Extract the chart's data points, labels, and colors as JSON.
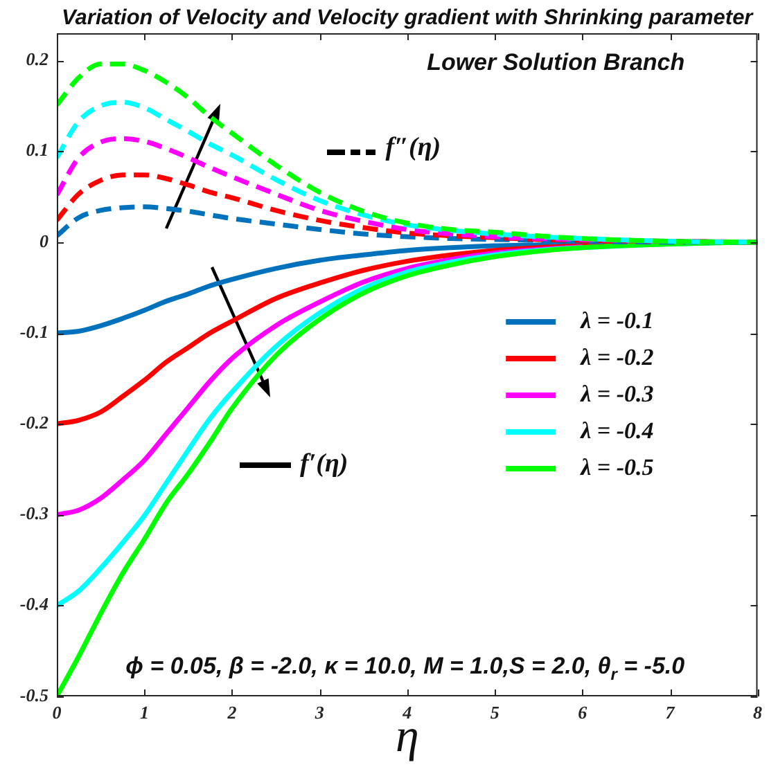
{
  "chart_data": {
    "type": "line",
    "title": "Variation of Velocity and Velocity gradient with Shrinking parameter",
    "xlabel": "η",
    "annotations": [
      "Lower Solution Branch",
      "f″(η)",
      "f′(η)",
      "ϕ = 0.05, β = -2.0, κ = 10.0, M = 1.0,S = 2.0, θ$_{r}$ = -5.0"
    ],
    "x": [
      0,
      0.25,
      0.5,
      0.75,
      1,
      1.25,
      1.5,
      1.75,
      2,
      2.5,
      3,
      3.5,
      4,
      4.5,
      5,
      5.5,
      6,
      7,
      8
    ],
    "series": [
      {
        "name": "λ = -0.1",
        "color": "#0072bd",
        "line_style": "solid",
        "values": [
          -0.1,
          -0.098,
          -0.092,
          -0.084,
          -0.075,
          -0.065,
          -0.057,
          -0.048,
          -0.041,
          -0.029,
          -0.02,
          -0.014,
          -0.009,
          -0.006,
          -0.004,
          -0.003,
          -0.002,
          -0.001,
          0
        ]
      },
      {
        "name": "λ = -0.2",
        "color": "#ff0000",
        "line_style": "solid",
        "values": [
          -0.2,
          -0.196,
          -0.187,
          -0.17,
          -0.152,
          -0.132,
          -0.116,
          -0.1,
          -0.087,
          -0.062,
          -0.045,
          -0.031,
          -0.021,
          -0.014,
          -0.009,
          -0.006,
          -0.004,
          -0.001,
          0
        ]
      },
      {
        "name": "λ = -0.3",
        "color": "#ff00ff",
        "line_style": "solid",
        "values": [
          -0.3,
          -0.295,
          -0.282,
          -0.262,
          -0.24,
          -0.211,
          -0.182,
          -0.153,
          -0.128,
          -0.092,
          -0.066,
          -0.044,
          -0.029,
          -0.019,
          -0.012,
          -0.008,
          -0.005,
          null,
          null
        ]
      },
      {
        "name": "λ = -0.4",
        "color": "#00ffff",
        "line_style": "solid",
        "values": [
          -0.4,
          -0.384,
          -0.359,
          -0.331,
          -0.301,
          -0.265,
          -0.229,
          -0.194,
          -0.165,
          -0.115,
          -0.078,
          -0.051,
          -0.033,
          -0.022,
          -0.014,
          -0.009,
          -0.006,
          -0.002,
          0
        ]
      },
      {
        "name": "λ = -0.5",
        "color": "#00ff00",
        "line_style": "solid",
        "values": [
          -0.5,
          -0.456,
          -0.409,
          -0.365,
          -0.327,
          -0.287,
          -0.255,
          -0.22,
          -0.183,
          -0.125,
          -0.085,
          -0.056,
          -0.037,
          -0.025,
          -0.016,
          -0.01,
          -0.006,
          -0.002,
          0
        ]
      },
      {
        "color": "#0072bd",
        "line_style": "dashed",
        "values": [
          0.007,
          0.027,
          0.035,
          0.038,
          0.039,
          0.037,
          0.034,
          0.03,
          0.026,
          0.02,
          0.014,
          0.009,
          0.006,
          0.004,
          0.003,
          0.002,
          0.001,
          0,
          0
        ]
      },
      {
        "color": "#ff0000",
        "line_style": "dashed",
        "values": [
          0.024,
          0.053,
          0.068,
          0.074,
          0.074,
          0.07,
          0.063,
          0.055,
          0.049,
          0.035,
          0.024,
          0.016,
          0.01,
          0.007,
          0.005,
          0.003,
          0.002,
          0.001,
          0
        ]
      },
      {
        "color": "#ff00ff",
        "line_style": "dashed",
        "values": [
          0.052,
          0.093,
          0.11,
          0.114,
          0.111,
          0.103,
          0.093,
          0.082,
          0.072,
          0.053,
          0.035,
          0.023,
          0.014,
          0.009,
          0.006,
          0.004,
          0.003,
          0.001,
          0
        ]
      },
      {
        "color": "#00ffff",
        "line_style": "dashed",
        "values": [
          0.093,
          0.133,
          0.15,
          0.154,
          0.148,
          0.135,
          0.122,
          0.108,
          0.096,
          0.069,
          0.046,
          0.03,
          0.019,
          0.013,
          0.009,
          0.006,
          0.004,
          0.001,
          0
        ]
      },
      {
        "color": "#00ff00",
        "line_style": "dashed",
        "values": [
          0.151,
          0.181,
          0.196,
          0.196,
          0.189,
          0.176,
          0.159,
          0.138,
          0.12,
          0.085,
          0.055,
          0.034,
          0.021,
          0.014,
          0.011,
          0.007,
          0.004,
          0.001,
          0
        ]
      }
    ],
    "xlim": [
      0,
      8
    ],
    "ylim": [
      -0.5,
      0.23
    ],
    "xticks": [
      0,
      1,
      2,
      3,
      4,
      5,
      6,
      7,
      8
    ],
    "yticks": [
      -0.5,
      -0.4,
      -0.3,
      -0.2,
      -0.1,
      0,
      0.1,
      0.2
    ],
    "grid": false,
    "legend": "right",
    "marker": "none"
  }
}
